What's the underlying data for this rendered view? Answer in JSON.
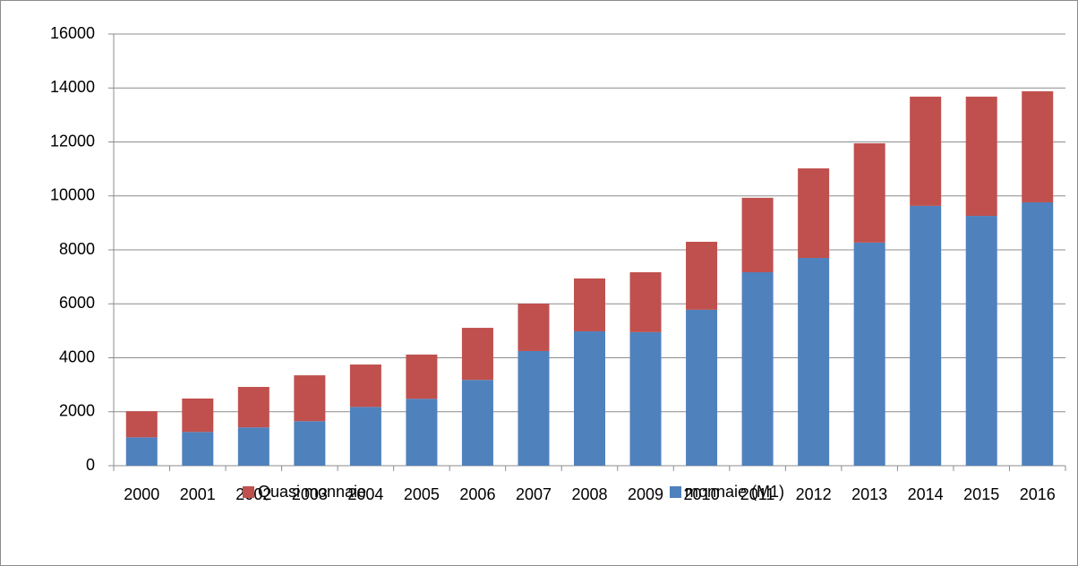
{
  "chart_data": {
    "type": "bar",
    "stacked": true,
    "categories": [
      "2000",
      "2001",
      "2002",
      "2003",
      "2004",
      "2005",
      "2006",
      "2007",
      "2008",
      "2009",
      "2010",
      "2011",
      "2012",
      "2013",
      "2014",
      "2015",
      "2016"
    ],
    "series": [
      {
        "name": "Quasi monnaie",
        "color": "#c0504d",
        "values": [
          970,
          1240,
          1500,
          1700,
          1570,
          1640,
          1930,
          1760,
          1960,
          2220,
          2520,
          2760,
          3320,
          3680,
          4050,
          4420,
          4120
        ]
      },
      {
        "name": "monnaie (M1)",
        "color": "#4f81bd",
        "values": [
          1050,
          1250,
          1420,
          1650,
          2180,
          2480,
          3180,
          4250,
          4980,
          4950,
          5780,
          7170,
          7700,
          8270,
          9630,
          9260,
          9760
        ]
      }
    ],
    "ylim": [
      0,
      16000
    ],
    "yticks": [
      0,
      2000,
      4000,
      6000,
      8000,
      10000,
      12000,
      14000,
      16000
    ],
    "grid": true,
    "legend": "bottom"
  }
}
